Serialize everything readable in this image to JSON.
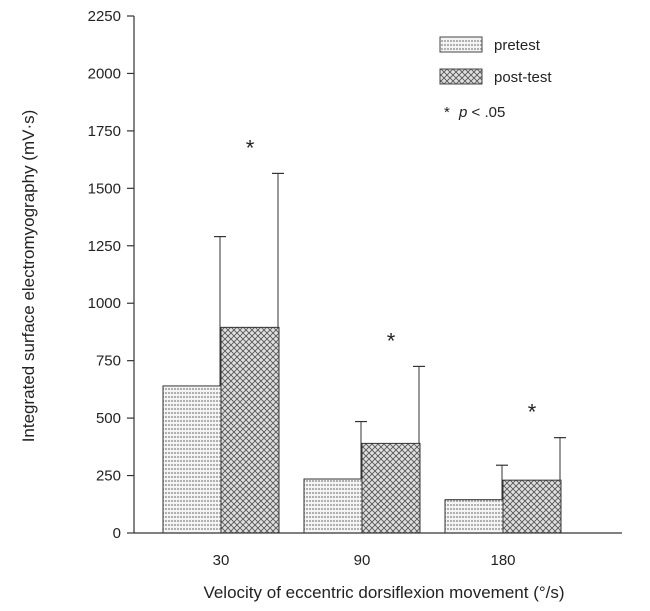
{
  "chart_data": {
    "type": "bar",
    "title": "",
    "xlabel": "Velocity of eccentric dorsiflexion movement (°/s)",
    "ylabel": "Integrated surface electromyography (mV·s)",
    "categories": [
      "30",
      "90",
      "180"
    ],
    "ylim": [
      0,
      2250
    ],
    "yticks": [
      0,
      250,
      500,
      750,
      1000,
      1250,
      1500,
      1750,
      2000,
      2250
    ],
    "series": [
      {
        "name": "pretest",
        "pattern": "horizontal-lines",
        "values": [
          640,
          235,
          145
        ],
        "error_upper": [
          1290,
          485,
          295
        ]
      },
      {
        "name": "post-test",
        "pattern": "crosshatch",
        "values": [
          895,
          390,
          230
        ],
        "error_upper": [
          1565,
          725,
          415
        ]
      }
    ],
    "significance_markers": [
      "*",
      "*",
      "*"
    ],
    "annotation": {
      "star": "*",
      "p_text": "p",
      "rest": " < .05"
    },
    "grid": false,
    "legend_position": "top-right"
  }
}
